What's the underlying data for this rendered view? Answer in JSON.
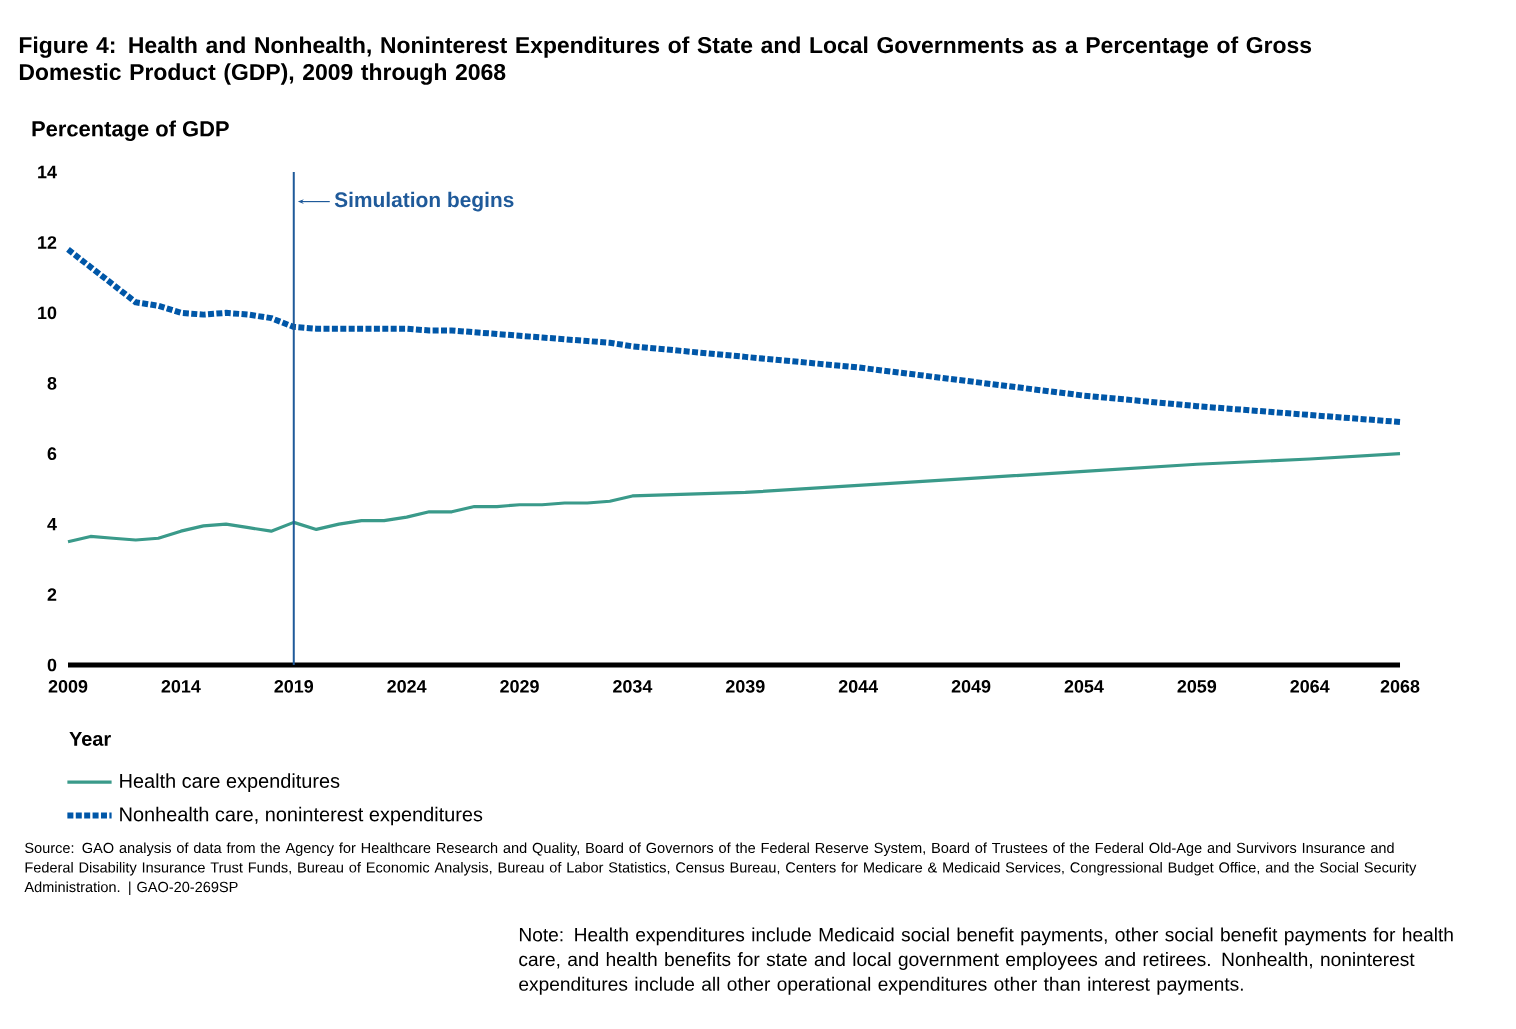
{
  "chart_data": {
    "type": "line",
    "title": "Figure 4: Health and Nonhealth, Noninterest Expenditures of State and Local Governments as a Percentage of Gross Domestic Product (GDP), 2009 through 2068",
    "ylabel": "Percentage of GDP",
    "xlabel": "Year",
    "xlim": [
      2009,
      2068
    ],
    "xticks": [
      2009,
      2014,
      2019,
      2024,
      2029,
      2034,
      2039,
      2044,
      2049,
      2054,
      2059,
      2064,
      2068
    ],
    "ylim": [
      0,
      14
    ],
    "yticks": [
      0,
      2,
      4,
      6,
      8,
      10,
      12,
      14
    ],
    "grid": false,
    "legend": "bottom left",
    "series": [
      {
        "name": "Health care expenditures",
        "color": "#3a9a8a",
        "line_style": "solid",
        "x": [
          2009,
          2010,
          2011,
          2012,
          2013,
          2014,
          2015,
          2016,
          2017,
          2018,
          2019,
          2020,
          2021,
          2022,
          2023,
          2024,
          2025,
          2026,
          2027,
          2028,
          2029,
          2030,
          2031,
          2032,
          2033,
          2034,
          2039,
          2044,
          2049,
          2054,
          2059,
          2064,
          2068
        ],
        "values": [
          3.5,
          3.65,
          3.6,
          3.55,
          3.6,
          3.8,
          3.95,
          4.0,
          3.9,
          3.8,
          4.05,
          3.85,
          4.0,
          4.1,
          4.1,
          4.2,
          4.35,
          4.35,
          4.5,
          4.5,
          4.55,
          4.55,
          4.6,
          4.6,
          4.65,
          4.8,
          4.9,
          5.1,
          5.3,
          5.5,
          5.7,
          5.85,
          6.0
        ]
      },
      {
        "name": "Nonhealth care, noninterest expenditures",
        "color": "#0057a8",
        "line_style": "dotted",
        "x": [
          2009,
          2010,
          2011,
          2012,
          2013,
          2014,
          2015,
          2016,
          2017,
          2018,
          2019,
          2020,
          2021,
          2022,
          2023,
          2024,
          2025,
          2026,
          2027,
          2028,
          2029,
          2030,
          2031,
          2032,
          2033,
          2034,
          2039,
          2044,
          2049,
          2054,
          2059,
          2064,
          2068
        ],
        "values": [
          11.8,
          11.3,
          10.8,
          10.3,
          10.2,
          10.0,
          9.95,
          10.0,
          9.95,
          9.85,
          9.6,
          9.55,
          9.55,
          9.55,
          9.55,
          9.55,
          9.5,
          9.5,
          9.45,
          9.4,
          9.35,
          9.3,
          9.25,
          9.2,
          9.15,
          9.05,
          8.75,
          8.45,
          8.05,
          7.65,
          7.35,
          7.1,
          6.9
        ]
      }
    ],
    "ref_lines": [
      {
        "axis": "x",
        "value": 2019,
        "label": "Simulation begins",
        "color": "#1f5a9a"
      }
    ],
    "annotations": [
      "Source: GAO analysis of data from the Agency for Healthcare Research and Quality, Board of Governors of the Federal Reserve System, Board of Trustees of the Federal Old-Age and Survivors Insurance and Federal Disability Insurance Trust Funds, Bureau of Economic Analysis, Bureau of Labor Statistics, Census Bureau, Centers for Medicare & Medicaid Services, Congressional Budget Office, and the Social Security Administration.  |  GAO-20-269SP",
      "Note: Health expenditures include Medicaid social benefit payments, other social benefit payments for health care, and health benefits for state and local government employees and retirees. Nonhealth, noninterest expenditures include all other operational expenditures other than interest payments."
    ]
  }
}
